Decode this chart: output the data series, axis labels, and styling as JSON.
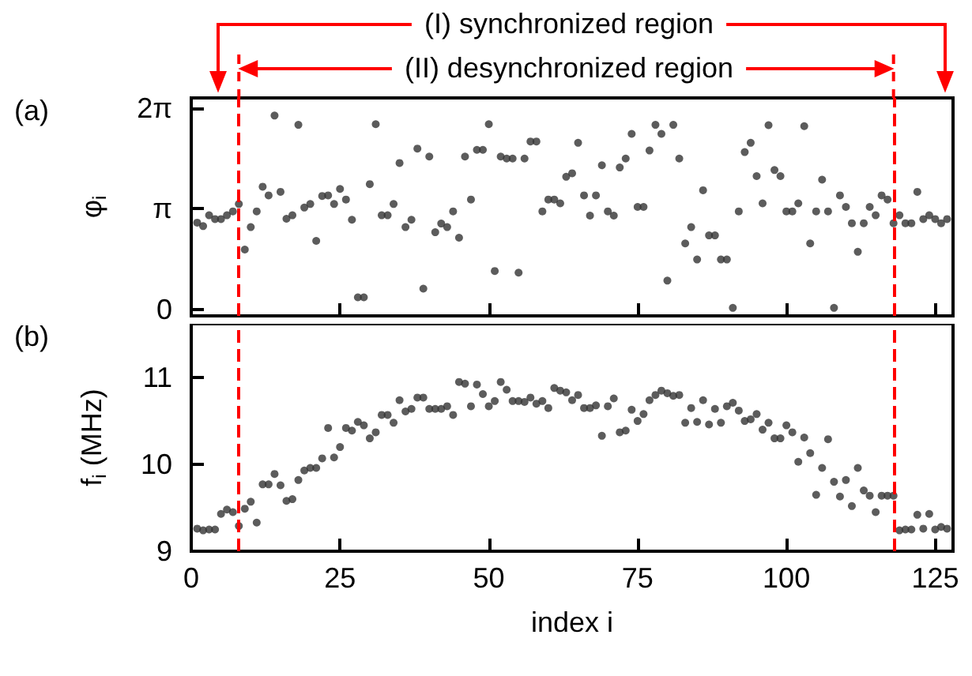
{
  "chart_data": [
    {
      "type": "scatter",
      "title": "(a)",
      "ylabel": "φ$_{i}$",
      "annotations": [
        "(I) synchronized region",
        "(II) desynchronized region"
      ],
      "x": [
        1,
        2,
        3,
        4,
        5,
        6,
        7,
        8,
        9,
        10,
        11,
        12,
        13,
        14,
        15,
        16,
        17,
        18,
        19,
        20,
        21,
        22,
        23,
        24,
        25,
        26,
        27,
        28,
        29,
        30,
        31,
        32,
        33,
        34,
        35,
        36,
        37,
        38,
        39,
        40,
        41,
        42,
        43,
        44,
        45,
        46,
        47,
        48,
        49,
        50,
        51,
        52,
        53,
        54,
        55,
        56,
        57,
        58,
        59,
        60,
        61,
        62,
        63,
        64,
        65,
        66,
        67,
        68,
        69,
        70,
        71,
        72,
        73,
        74,
        75,
        76,
        77,
        78,
        79,
        80,
        81,
        82,
        83,
        84,
        85,
        86,
        87,
        88,
        89,
        90,
        91,
        92,
        93,
        94,
        95,
        96,
        97,
        98,
        99,
        100,
        101,
        102,
        103,
        104,
        105,
        106,
        107,
        108,
        109,
        110,
        111,
        112,
        113,
        114,
        115,
        116,
        117,
        118,
        119,
        120,
        121,
        122,
        123,
        124,
        125,
        126,
        127
      ],
      "series": [
        {
          "color": "#333333",
          "values": [
            2.71,
            2.6,
            2.94,
            2.82,
            2.82,
            2.94,
            3.06,
            3.29,
            1.87,
            2.57,
            3.06,
            3.83,
            3.56,
            6.05,
            3.67,
            2.83,
            2.94,
            5.76,
            3.18,
            3.29,
            2.14,
            3.54,
            3.56,
            3.29,
            3.76,
            3.43,
            2.8,
            0.38,
            0.38,
            3.91,
            5.78,
            2.94,
            2.94,
            3.29,
            4.57,
            2.57,
            2.8,
            5.02,
            0.65,
            4.77,
            2.41,
            2.68,
            2.57,
            3.06,
            2.24,
            4.77,
            3.43,
            4.98,
            4.98,
            5.78,
            1.2,
            4.77,
            4.71,
            4.71,
            1.15,
            4.71,
            5.24,
            5.24,
            3.06,
            3.43,
            3.43,
            3.31,
            4.14,
            4.25,
            5.2,
            3.56,
            2.93,
            3.56,
            4.5,
            3.06,
            2.93,
            4.43,
            4.71,
            5.48,
            3.2,
            3.2,
            4.96,
            5.76,
            5.48,
            0.9,
            5.76,
            4.71,
            2.06,
            2.57,
            1.56,
            3.72,
            2.31,
            2.31,
            1.56,
            1.56,
            0.05,
            3.06,
            4.91,
            5.2,
            4.16,
            3.31,
            5.75,
            4.35,
            4.16,
            3.06,
            3.06,
            3.31,
            5.72,
            2.06,
            3.06,
            4.05,
            3.06,
            0.05,
            3.56,
            3.2,
            2.69,
            1.8,
            2.69,
            3.2,
            2.94,
            3.56,
            3.43,
            2.69,
            2.94,
            2.69,
            2.69,
            3.67,
            2.82,
            2.94,
            2.82,
            2.69,
            2.82
          ]
        }
      ],
      "xlim": [
        0,
        128
      ],
      "xticks": [
        0,
        25,
        50,
        75,
        100,
        125
      ],
      "ylim": [
        -0.2,
        6.6
      ],
      "yticks": [
        0,
        {
          "value": 3.14159,
          "label": "π"
        },
        {
          "value": 6.28319,
          "label": "2π"
        }
      ],
      "tick_labels": "y",
      "marker": "circle",
      "ref_lines": [
        {
          "axis": "x",
          "value": 8,
          "color": "#ff0000",
          "line_style": "dashed"
        },
        {
          "axis": "x",
          "value": 118,
          "color": "#ff0000",
          "line_style": "dashed"
        }
      ]
    },
    {
      "type": "scatter",
      "title": "(b)",
      "xlabel": "index i",
      "ylabel": "f$_{i}$ (MHz)",
      "x": [
        1,
        2,
        3,
        4,
        5,
        6,
        7,
        8,
        9,
        10,
        11,
        12,
        13,
        14,
        15,
        16,
        17,
        18,
        19,
        20,
        21,
        22,
        23,
        24,
        25,
        26,
        27,
        28,
        29,
        30,
        31,
        32,
        33,
        34,
        35,
        36,
        37,
        38,
        39,
        40,
        41,
        42,
        43,
        44,
        45,
        46,
        47,
        48,
        49,
        50,
        51,
        52,
        53,
        54,
        55,
        56,
        57,
        58,
        59,
        60,
        61,
        62,
        63,
        64,
        65,
        66,
        67,
        68,
        69,
        70,
        71,
        72,
        73,
        74,
        75,
        76,
        77,
        78,
        79,
        80,
        81,
        82,
        83,
        84,
        85,
        86,
        87,
        88,
        89,
        90,
        91,
        92,
        93,
        94,
        95,
        96,
        97,
        98,
        99,
        100,
        101,
        102,
        103,
        104,
        105,
        106,
        107,
        108,
        109,
        110,
        111,
        112,
        113,
        114,
        115,
        116,
        117,
        118,
        119,
        120,
        121,
        122,
        123,
        124,
        125,
        126,
        127
      ],
      "series": [
        {
          "color": "#333333",
          "values": [
            9.26,
            9.24,
            9.25,
            9.25,
            9.43,
            9.48,
            9.45,
            9.29,
            9.49,
            9.57,
            9.33,
            9.77,
            9.77,
            9.89,
            9.76,
            9.58,
            9.6,
            9.82,
            9.93,
            9.96,
            9.96,
            10.07,
            10.42,
            10.08,
            10.2,
            10.42,
            10.39,
            10.49,
            10.45,
            10.3,
            10.37,
            10.57,
            10.57,
            10.48,
            10.74,
            10.61,
            10.64,
            10.77,
            10.77,
            10.64,
            10.64,
            10.64,
            10.67,
            10.57,
            10.95,
            10.93,
            10.67,
            10.92,
            10.81,
            10.67,
            10.73,
            10.95,
            10.86,
            10.73,
            10.73,
            10.72,
            10.77,
            10.7,
            10.73,
            10.65,
            10.88,
            10.85,
            10.83,
            10.74,
            10.8,
            10.65,
            10.65,
            10.68,
            10.33,
            10.67,
            10.76,
            10.37,
            10.39,
            10.63,
            10.5,
            10.58,
            10.74,
            10.8,
            10.85,
            10.82,
            10.79,
            10.8,
            10.48,
            10.65,
            10.49,
            10.74,
            10.46,
            10.64,
            10.48,
            10.67,
            10.71,
            10.62,
            10.5,
            10.52,
            10.58,
            10.4,
            10.48,
            10.3,
            10.3,
            10.45,
            10.37,
            10.03,
            10.31,
            10.13,
            9.65,
            9.96,
            10.29,
            9.8,
            9.63,
            9.82,
            9.52,
            9.96,
            9.7,
            9.64,
            9.45,
            9.64,
            9.64,
            9.64,
            9.24,
            9.25,
            9.25,
            9.42,
            9.26,
            9.43,
            9.25,
            9.28,
            9.26
          ]
        }
      ],
      "xlim": [
        0,
        128
      ],
      "xticks": [
        0,
        25,
        50,
        75,
        100,
        125
      ],
      "ylim": [
        9,
        11.62
      ],
      "yticks": [
        9,
        10,
        11
      ],
      "marker": "circle",
      "ref_lines": [
        {
          "axis": "x",
          "value": 8,
          "color": "#ff0000",
          "line_style": "dashed"
        },
        {
          "axis": "x",
          "value": 118,
          "color": "#ff0000",
          "line_style": "dashed"
        }
      ]
    }
  ]
}
